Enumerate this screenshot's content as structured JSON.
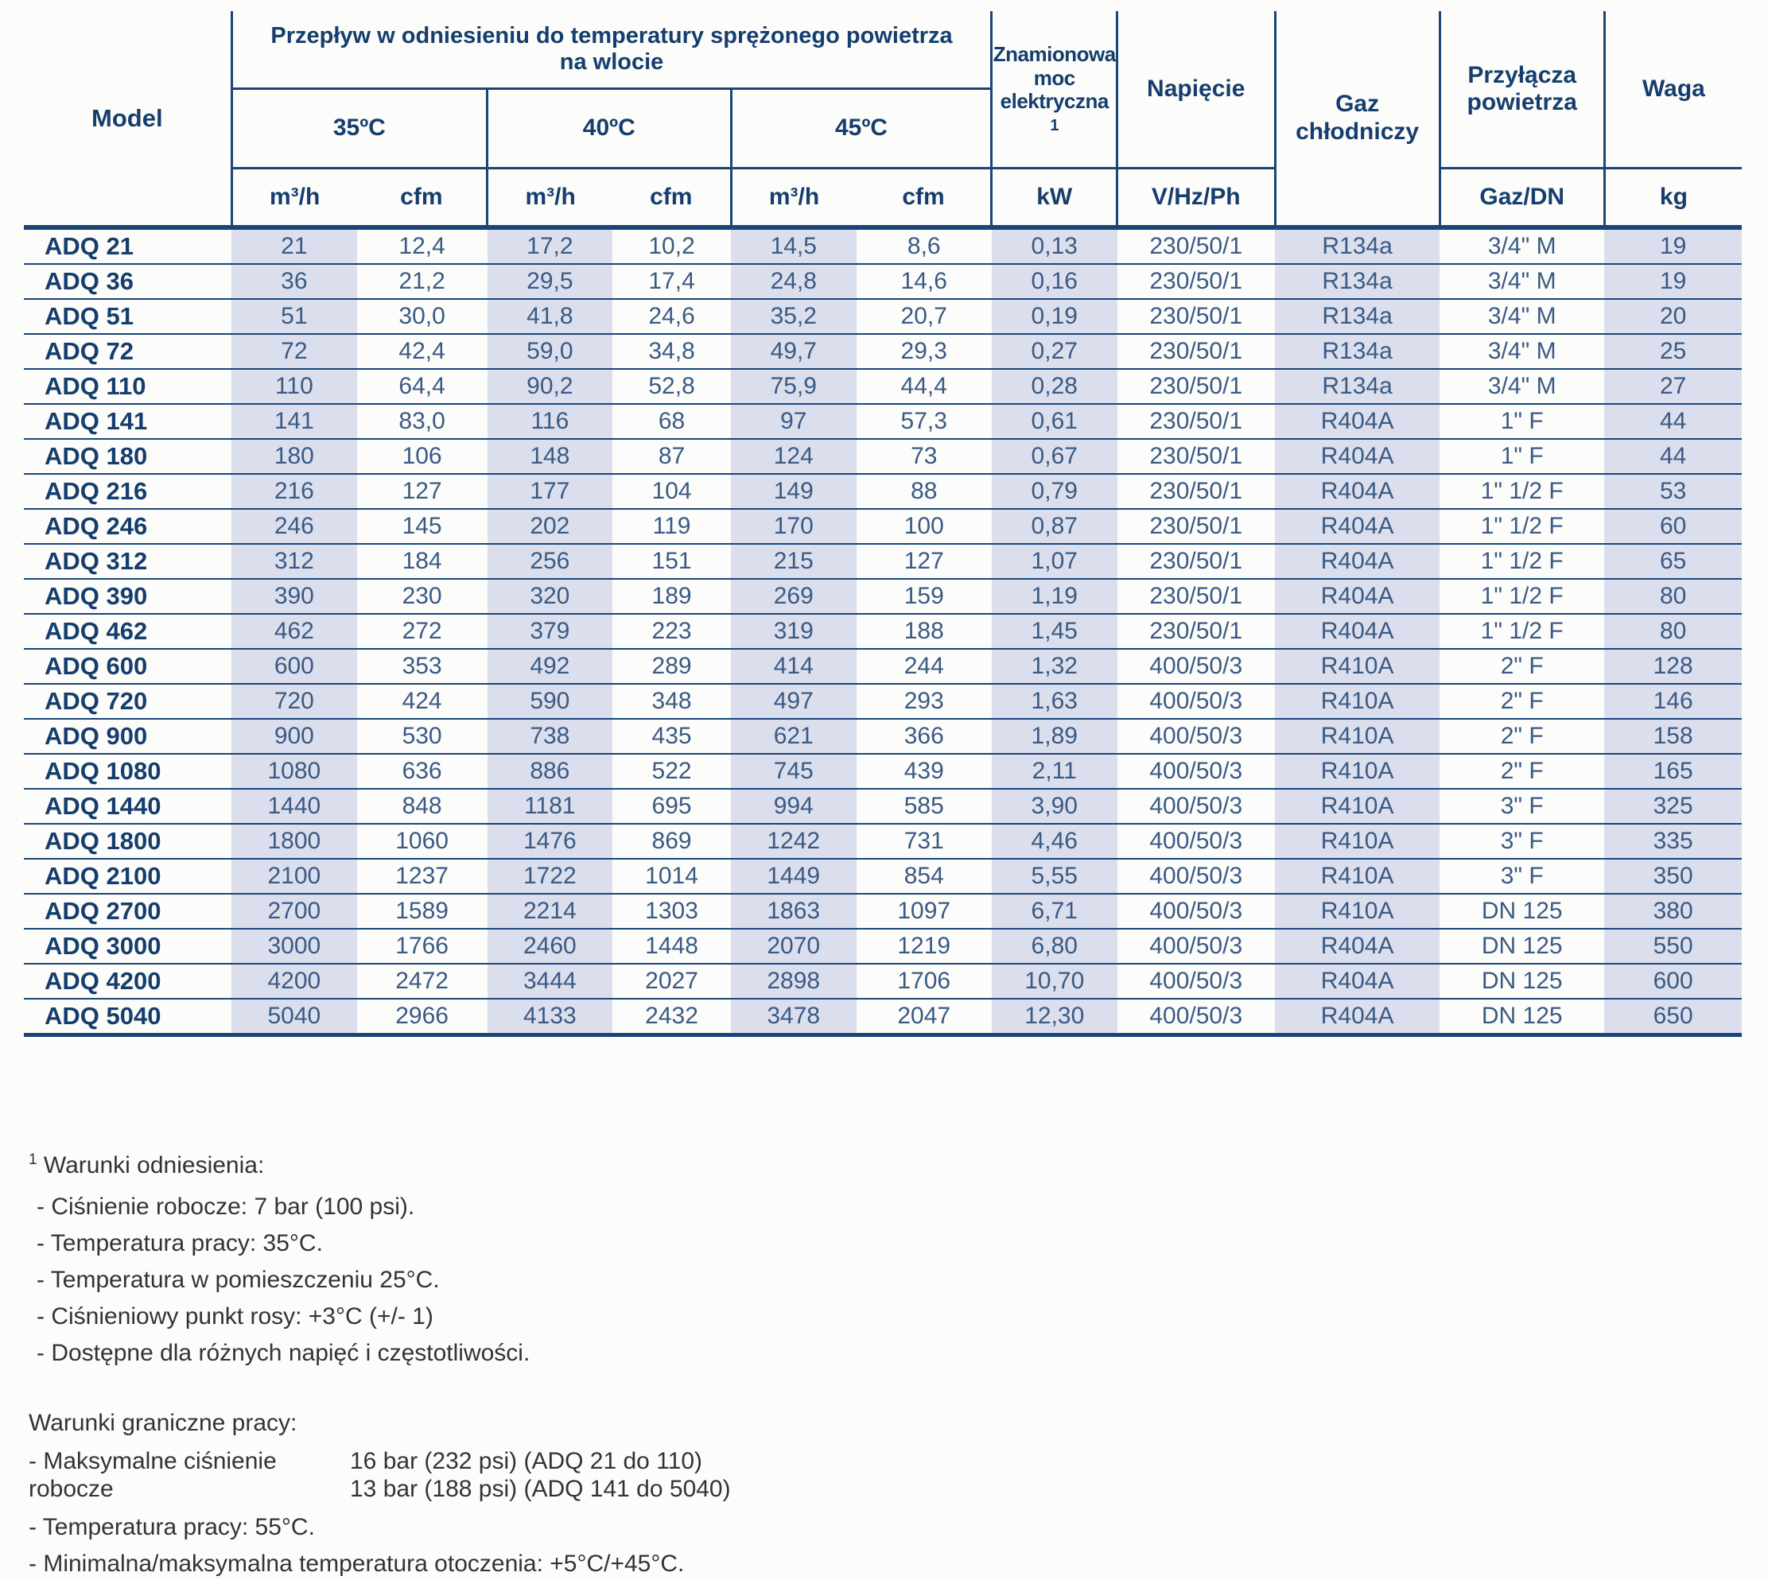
{
  "colors": {
    "accent_navy": "#153e6e",
    "border_navy": "#1a4577",
    "data_text": "#3a5a84",
    "row_shade": "#dbdeec",
    "note_text": "#333333"
  },
  "table": {
    "header": {
      "model": "Model",
      "flow_group": "Przepływ w odniesieniu do temperatury sprężonego powietrza na wlocie",
      "temps": [
        "35ºC",
        "40ºC",
        "45ºC"
      ],
      "unit_m3h": "m³/h",
      "unit_cfm": "cfm",
      "power_label": "Znamionowa moc elektryczna",
      "power_sup": "1",
      "power_unit": "kW",
      "voltage_label": "Napięcie",
      "voltage_unit": "V/Hz/Ph",
      "gas_label": "Gaz chłodniczy",
      "conn_label": "Przyłącza powietrza",
      "conn_unit": "Gaz/DN",
      "weight_label": "Waga",
      "weight_unit": "kg"
    },
    "rows": [
      {
        "model": "ADQ 21",
        "m35": "21",
        "cfm35": "12,4",
        "m40": "17,2",
        "cfm40": "10,2",
        "m45": "14,5",
        "cfm45": "8,6",
        "kw": "0,13",
        "v": "230/50/1",
        "gas": "R134a",
        "conn": "3/4\" M",
        "kg": "19"
      },
      {
        "model": "ADQ 36",
        "m35": "36",
        "cfm35": "21,2",
        "m40": "29,5",
        "cfm40": "17,4",
        "m45": "24,8",
        "cfm45": "14,6",
        "kw": "0,16",
        "v": "230/50/1",
        "gas": "R134a",
        "conn": "3/4\" M",
        "kg": "19"
      },
      {
        "model": "ADQ 51",
        "m35": "51",
        "cfm35": "30,0",
        "m40": "41,8",
        "cfm40": "24,6",
        "m45": "35,2",
        "cfm45": "20,7",
        "kw": "0,19",
        "v": "230/50/1",
        "gas": "R134a",
        "conn": "3/4\" M",
        "kg": "20"
      },
      {
        "model": "ADQ 72",
        "m35": "72",
        "cfm35": "42,4",
        "m40": "59,0",
        "cfm40": "34,8",
        "m45": "49,7",
        "cfm45": "29,3",
        "kw": "0,27",
        "v": "230/50/1",
        "gas": "R134a",
        "conn": "3/4\" M",
        "kg": "25"
      },
      {
        "model": "ADQ 110",
        "m35": "110",
        "cfm35": "64,4",
        "m40": "90,2",
        "cfm40": "52,8",
        "m45": "75,9",
        "cfm45": "44,4",
        "kw": "0,28",
        "v": "230/50/1",
        "gas": "R134a",
        "conn": "3/4\" M",
        "kg": "27"
      },
      {
        "model": "ADQ 141",
        "m35": "141",
        "cfm35": "83,0",
        "m40": "116",
        "cfm40": "68",
        "m45": "97",
        "cfm45": "57,3",
        "kw": "0,61",
        "v": "230/50/1",
        "gas": "R404A",
        "conn": "1\" F",
        "kg": "44"
      },
      {
        "model": "ADQ 180",
        "m35": "180",
        "cfm35": "106",
        "m40": "148",
        "cfm40": "87",
        "m45": "124",
        "cfm45": "73",
        "kw": "0,67",
        "v": "230/50/1",
        "gas": "R404A",
        "conn": "1\" F",
        "kg": "44"
      },
      {
        "model": "ADQ 216",
        "m35": "216",
        "cfm35": "127",
        "m40": "177",
        "cfm40": "104",
        "m45": "149",
        "cfm45": "88",
        "kw": "0,79",
        "v": "230/50/1",
        "gas": "R404A",
        "conn": "1\" 1/2 F",
        "kg": "53"
      },
      {
        "model": "ADQ 246",
        "m35": "246",
        "cfm35": "145",
        "m40": "202",
        "cfm40": "119",
        "m45": "170",
        "cfm45": "100",
        "kw": "0,87",
        "v": "230/50/1",
        "gas": "R404A",
        "conn": "1\" 1/2 F",
        "kg": "60"
      },
      {
        "model": "ADQ 312",
        "m35": "312",
        "cfm35": "184",
        "m40": "256",
        "cfm40": "151",
        "m45": "215",
        "cfm45": "127",
        "kw": "1,07",
        "v": "230/50/1",
        "gas": "R404A",
        "conn": "1\" 1/2 F",
        "kg": "65"
      },
      {
        "model": "ADQ 390",
        "m35": "390",
        "cfm35": "230",
        "m40": "320",
        "cfm40": "189",
        "m45": "269",
        "cfm45": "159",
        "kw": "1,19",
        "v": "230/50/1",
        "gas": "R404A",
        "conn": "1\" 1/2 F",
        "kg": "80"
      },
      {
        "model": "ADQ 462",
        "m35": "462",
        "cfm35": "272",
        "m40": "379",
        "cfm40": "223",
        "m45": "319",
        "cfm45": "188",
        "kw": "1,45",
        "v": "230/50/1",
        "gas": "R404A",
        "conn": "1\" 1/2 F",
        "kg": "80"
      },
      {
        "model": "ADQ 600",
        "m35": "600",
        "cfm35": "353",
        "m40": "492",
        "cfm40": "289",
        "m45": "414",
        "cfm45": "244",
        "kw": "1,32",
        "v": "400/50/3",
        "gas": "R410A",
        "conn": "2\" F",
        "kg": "128"
      },
      {
        "model": "ADQ 720",
        "m35": "720",
        "cfm35": "424",
        "m40": "590",
        "cfm40": "348",
        "m45": "497",
        "cfm45": "293",
        "kw": "1,63",
        "v": "400/50/3",
        "gas": "R410A",
        "conn": "2\" F",
        "kg": "146"
      },
      {
        "model": "ADQ 900",
        "m35": "900",
        "cfm35": "530",
        "m40": "738",
        "cfm40": "435",
        "m45": "621",
        "cfm45": "366",
        "kw": "1,89",
        "v": "400/50/3",
        "gas": "R410A",
        "conn": "2\" F",
        "kg": "158"
      },
      {
        "model": "ADQ 1080",
        "m35": "1080",
        "cfm35": "636",
        "m40": "886",
        "cfm40": "522",
        "m45": "745",
        "cfm45": "439",
        "kw": "2,11",
        "v": "400/50/3",
        "gas": "R410A",
        "conn": "2\" F",
        "kg": "165"
      },
      {
        "model": "ADQ 1440",
        "m35": "1440",
        "cfm35": "848",
        "m40": "1181",
        "cfm40": "695",
        "m45": "994",
        "cfm45": "585",
        "kw": "3,90",
        "v": "400/50/3",
        "gas": "R410A",
        "conn": "3\" F",
        "kg": "325"
      },
      {
        "model": "ADQ 1800",
        "m35": "1800",
        "cfm35": "1060",
        "m40": "1476",
        "cfm40": "869",
        "m45": "1242",
        "cfm45": "731",
        "kw": "4,46",
        "v": "400/50/3",
        "gas": "R410A",
        "conn": "3\" F",
        "kg": "335"
      },
      {
        "model": "ADQ 2100",
        "m35": "2100",
        "cfm35": "1237",
        "m40": "1722",
        "cfm40": "1014",
        "m45": "1449",
        "cfm45": "854",
        "kw": "5,55",
        "v": "400/50/3",
        "gas": "R410A",
        "conn": "3\" F",
        "kg": "350"
      },
      {
        "model": "ADQ 2700",
        "m35": "2700",
        "cfm35": "1589",
        "m40": "2214",
        "cfm40": "1303",
        "m45": "1863",
        "cfm45": "1097",
        "kw": "6,71",
        "v": "400/50/3",
        "gas": "R410A",
        "conn": "DN 125",
        "kg": "380"
      },
      {
        "model": "ADQ 3000",
        "m35": "3000",
        "cfm35": "1766",
        "m40": "2460",
        "cfm40": "1448",
        "m45": "2070",
        "cfm45": "1219",
        "kw": "6,80",
        "v": "400/50/3",
        "gas": "R404A",
        "conn": "DN 125",
        "kg": "550"
      },
      {
        "model": "ADQ 4200",
        "m35": "4200",
        "cfm35": "2472",
        "m40": "3444",
        "cfm40": "2027",
        "m45": "2898",
        "cfm45": "1706",
        "kw": "10,70",
        "v": "400/50/3",
        "gas": "R404A",
        "conn": "DN 125",
        "kg": "600"
      },
      {
        "model": "ADQ 5040",
        "m35": "5040",
        "cfm35": "2966",
        "m40": "4133",
        "cfm40": "2432",
        "m45": "3478",
        "cfm45": "2047",
        "kw": "12,30",
        "v": "400/50/3",
        "gas": "R404A",
        "conn": "DN 125",
        "kg": "650"
      }
    ]
  },
  "footnotes": {
    "reference": {
      "sup": "1",
      "title": "Warunki odniesienia:",
      "items": [
        "- Ciśnienie robocze: 7 bar (100 psi).",
        "- Temperatura pracy: 35°C.",
        "- Temperatura w pomieszczeniu 25°C.",
        "- Ciśnieniowy punkt rosy: +3°C (+/- 1)",
        "- Dostępne dla różnych napięć i częstotliwości."
      ]
    },
    "limits": {
      "title": "Warunki graniczne pracy:",
      "max_pressure_label": "- Maksymalne ciśnienie robocze",
      "max_pressure_values": [
        "16 bar (232 psi) (ADQ 21 do 110)",
        "13 bar (188 psi) (ADQ 141 do 5040)"
      ],
      "items": [
        "- Temperatura pracy: 55°C.",
        "- Minimalna/maksymalna temperatura otoczenia: +5°C/+45°C."
      ]
    }
  }
}
